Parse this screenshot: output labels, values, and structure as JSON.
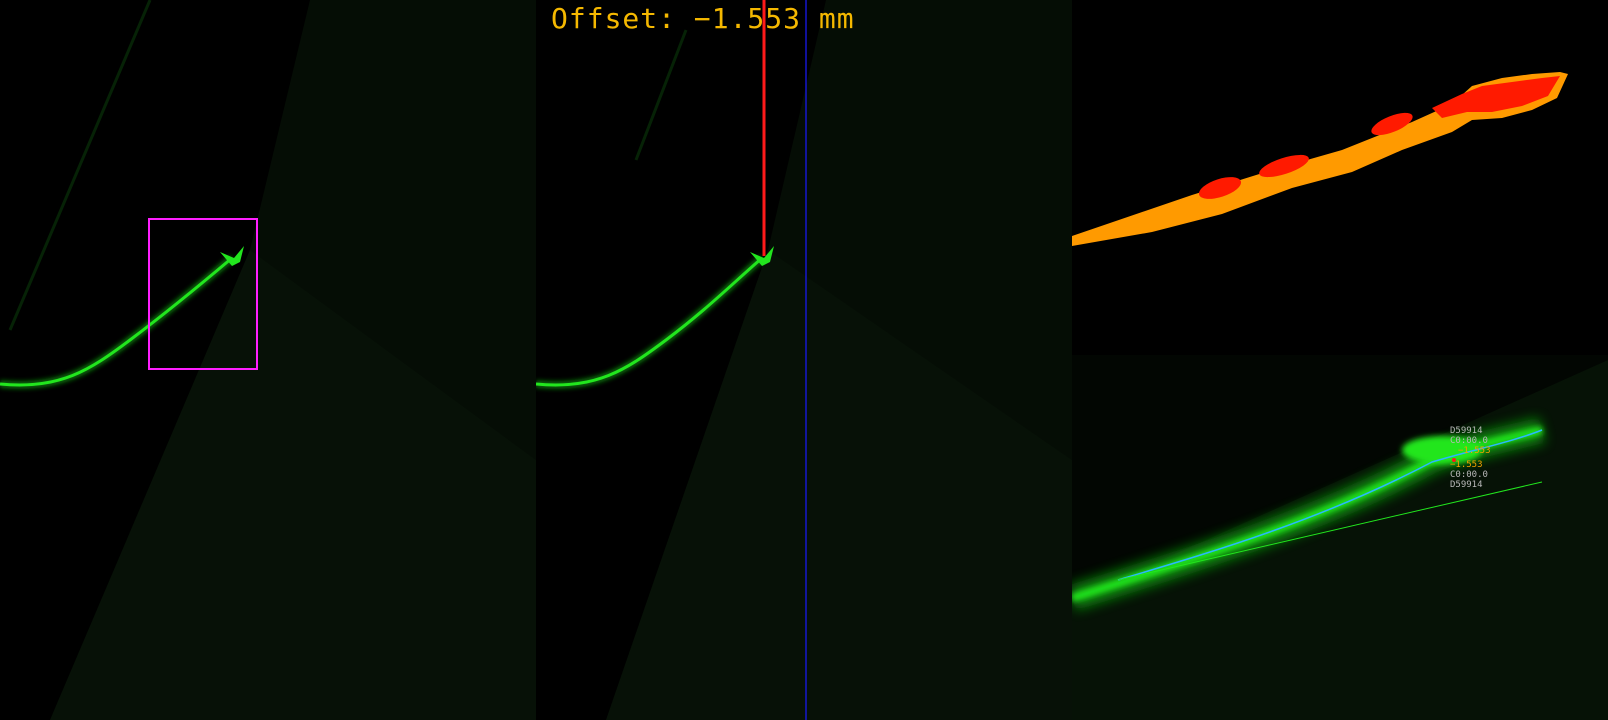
{
  "overlay": {
    "offset_label": "Offset: −1.553 mm"
  },
  "annotations": {
    "lines": [
      {
        "text": "D59914",
        "color": "#b8b8b8"
      },
      {
        "text": "C0:00.0",
        "color": "#b8b8b8"
      },
      {
        "text": "−1.553",
        "color": "#f5a000"
      },
      {
        "text": "−1.553",
        "color": "#f5a000"
      },
      {
        "text": "C0:00.0",
        "color": "#b8b8b8"
      },
      {
        "text": "D59914",
        "color": "#b8b8b8"
      }
    ]
  },
  "colors": {
    "laser_green": "#22e61e",
    "roi_box": "#ff1fff",
    "center_line": "#ff1a1a",
    "reference_line": "#1a1aff",
    "heat_hot": "#ff1a00",
    "heat_warm": "#ff9a00",
    "offset_text": "#f5b800"
  }
}
